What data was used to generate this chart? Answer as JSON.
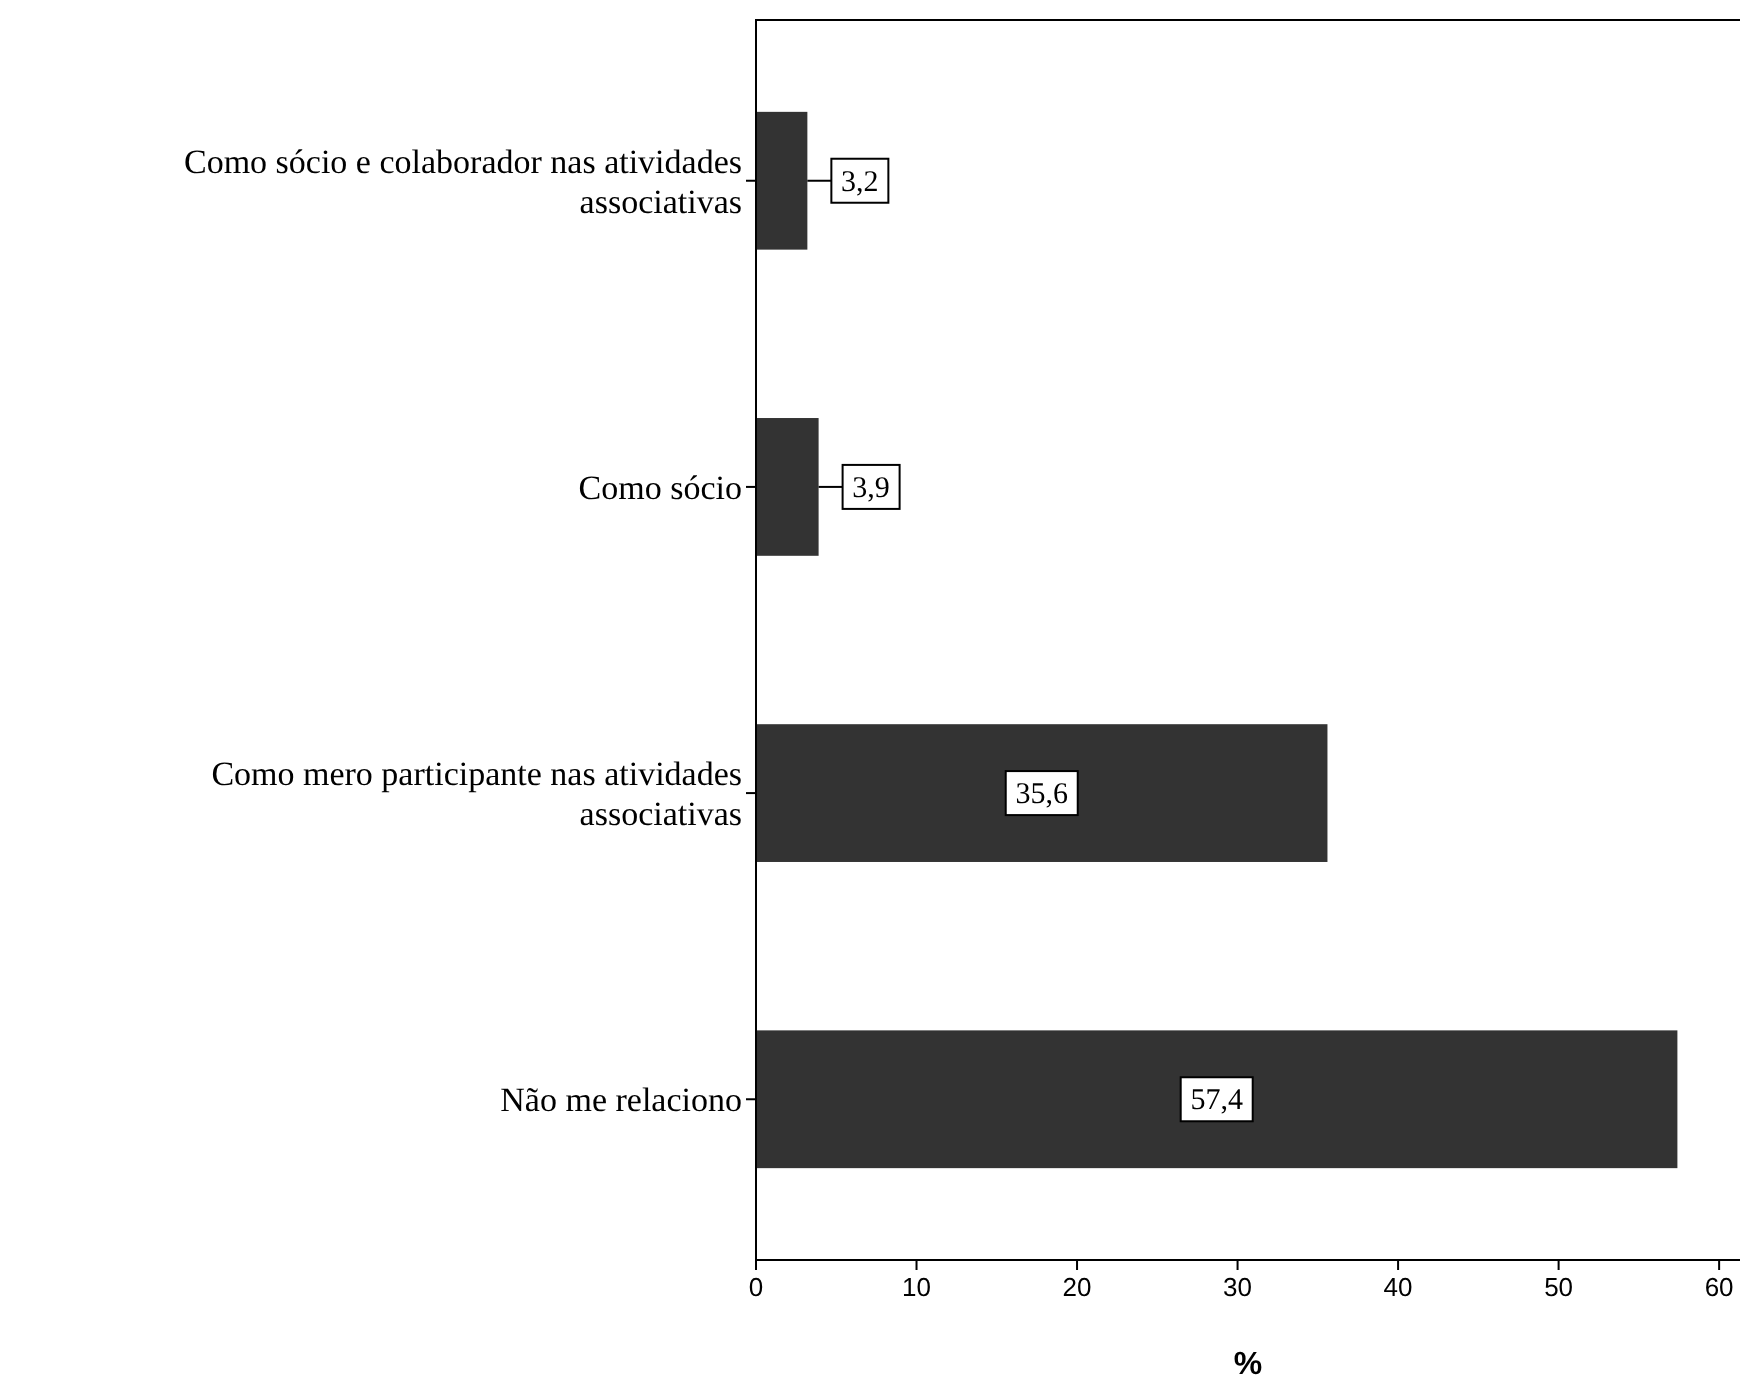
{
  "chart_data": {
    "type": "bar",
    "orientation": "horizontal",
    "categories": [
      "Como sócio e colaborador nas atividades associativas",
      "Como sócio",
      "Como mero participante nas atividades associativas",
      "Não me relaciono"
    ],
    "values": [
      3.2,
      3.9,
      35.6,
      57.4
    ],
    "value_labels": [
      "3,2",
      "3,9",
      "35,6",
      "57,4"
    ],
    "color": "#333333",
    "xlim": [
      0,
      61.3
    ],
    "xticks": [
      0,
      10,
      20,
      30,
      40,
      50,
      60
    ],
    "xlabel": "%"
  }
}
